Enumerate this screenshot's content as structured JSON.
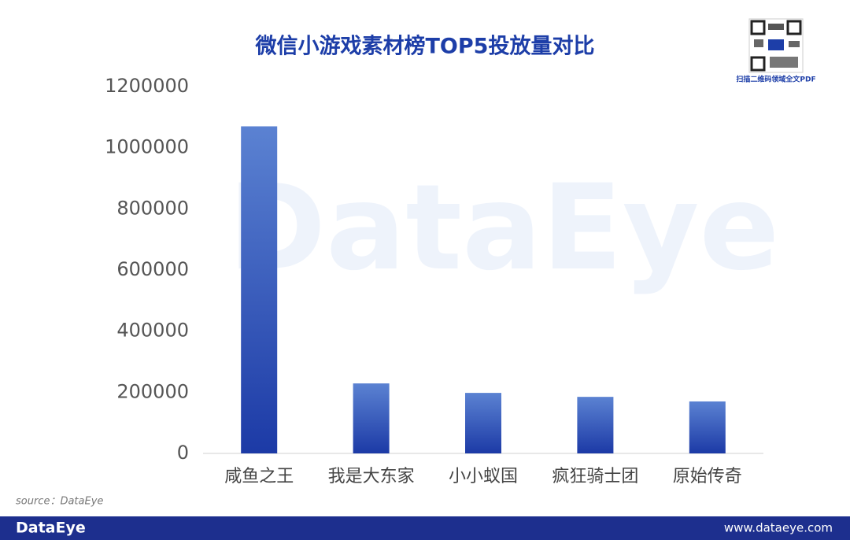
{
  "chart_data": {
    "type": "bar",
    "title": "微信小游戏素材榜TOP5投放量对比",
    "categories": [
      "咸鱼之王",
      "我是大东家",
      "小小蚁国",
      "疯狂骑士团",
      "原始传奇"
    ],
    "values": [
      1070000,
      229000,
      198000,
      185000,
      170000
    ],
    "color": "#2f56c2",
    "ylim": [
      0,
      1200000
    ],
    "yticks": [
      0,
      200000,
      400000,
      600000,
      800000,
      1000000,
      1200000
    ],
    "grid": false
  },
  "page": {
    "watermark": "DataEye",
    "source": "source：DataEye",
    "qr_caption": "扫描二维码领域全文PDF",
    "footer_brand": "DataEye",
    "footer_url": "www.dataeye.com"
  }
}
